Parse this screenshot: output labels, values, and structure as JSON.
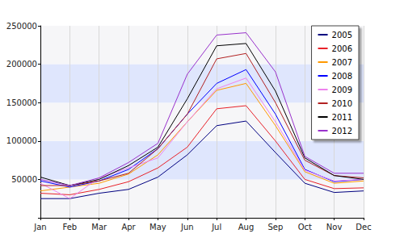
{
  "chart_data": {
    "type": "line",
    "categories": [
      "Jan",
      "Feb",
      "Mar",
      "Apr",
      "May",
      "Jun",
      "Jul",
      "Aug",
      "Sep",
      "Oct",
      "Nov",
      "Dec"
    ],
    "series": [
      {
        "name": "2005",
        "color": "#000080",
        "values": [
          25000,
          25000,
          32000,
          37000,
          53000,
          82000,
          120000,
          126000,
          85000,
          45000,
          33000,
          35000
        ]
      },
      {
        "name": "2006",
        "color": "#e8222a",
        "values": [
          32000,
          30000,
          37000,
          47000,
          65000,
          92000,
          142000,
          146000,
          100000,
          50000,
          38000,
          39000
        ]
      },
      {
        "name": "2007",
        "color": "#ff9900",
        "values": [
          35000,
          40000,
          45000,
          57000,
          82000,
          125000,
          166000,
          175000,
          120000,
          60000,
          45000,
          48000
        ]
      },
      {
        "name": "2008",
        "color": "#0000ff",
        "values": [
          48000,
          40000,
          48000,
          63000,
          90000,
          135000,
          175000,
          193000,
          135000,
          63000,
          47000,
          50000
        ]
      },
      {
        "name": "2009",
        "color": "#ee82ee",
        "values": [
          45000,
          25000,
          52000,
          65000,
          78000,
          125000,
          168000,
          182000,
          125000,
          62000,
          48000,
          50000
        ]
      },
      {
        "name": "2010",
        "color": "#b22222",
        "values": [
          42000,
          42000,
          48000,
          58000,
          90000,
          135000,
          207000,
          214000,
          150000,
          75000,
          55000,
          52000
        ]
      },
      {
        "name": "2011",
        "color": "#000000",
        "values": [
          53000,
          42000,
          50000,
          68000,
          92000,
          155000,
          224000,
          227000,
          165000,
          78000,
          55000,
          50000
        ]
      },
      {
        "name": "2012",
        "color": "#9932cc",
        "values": [
          50000,
          42000,
          52000,
          72000,
          97000,
          187000,
          238000,
          241000,
          190000,
          80000,
          58000,
          58000
        ]
      }
    ],
    "ylim": [
      0,
      250000
    ],
    "yticks": [
      50000,
      100000,
      150000,
      200000,
      250000
    ],
    "grid": true,
    "legend": "top-right"
  }
}
